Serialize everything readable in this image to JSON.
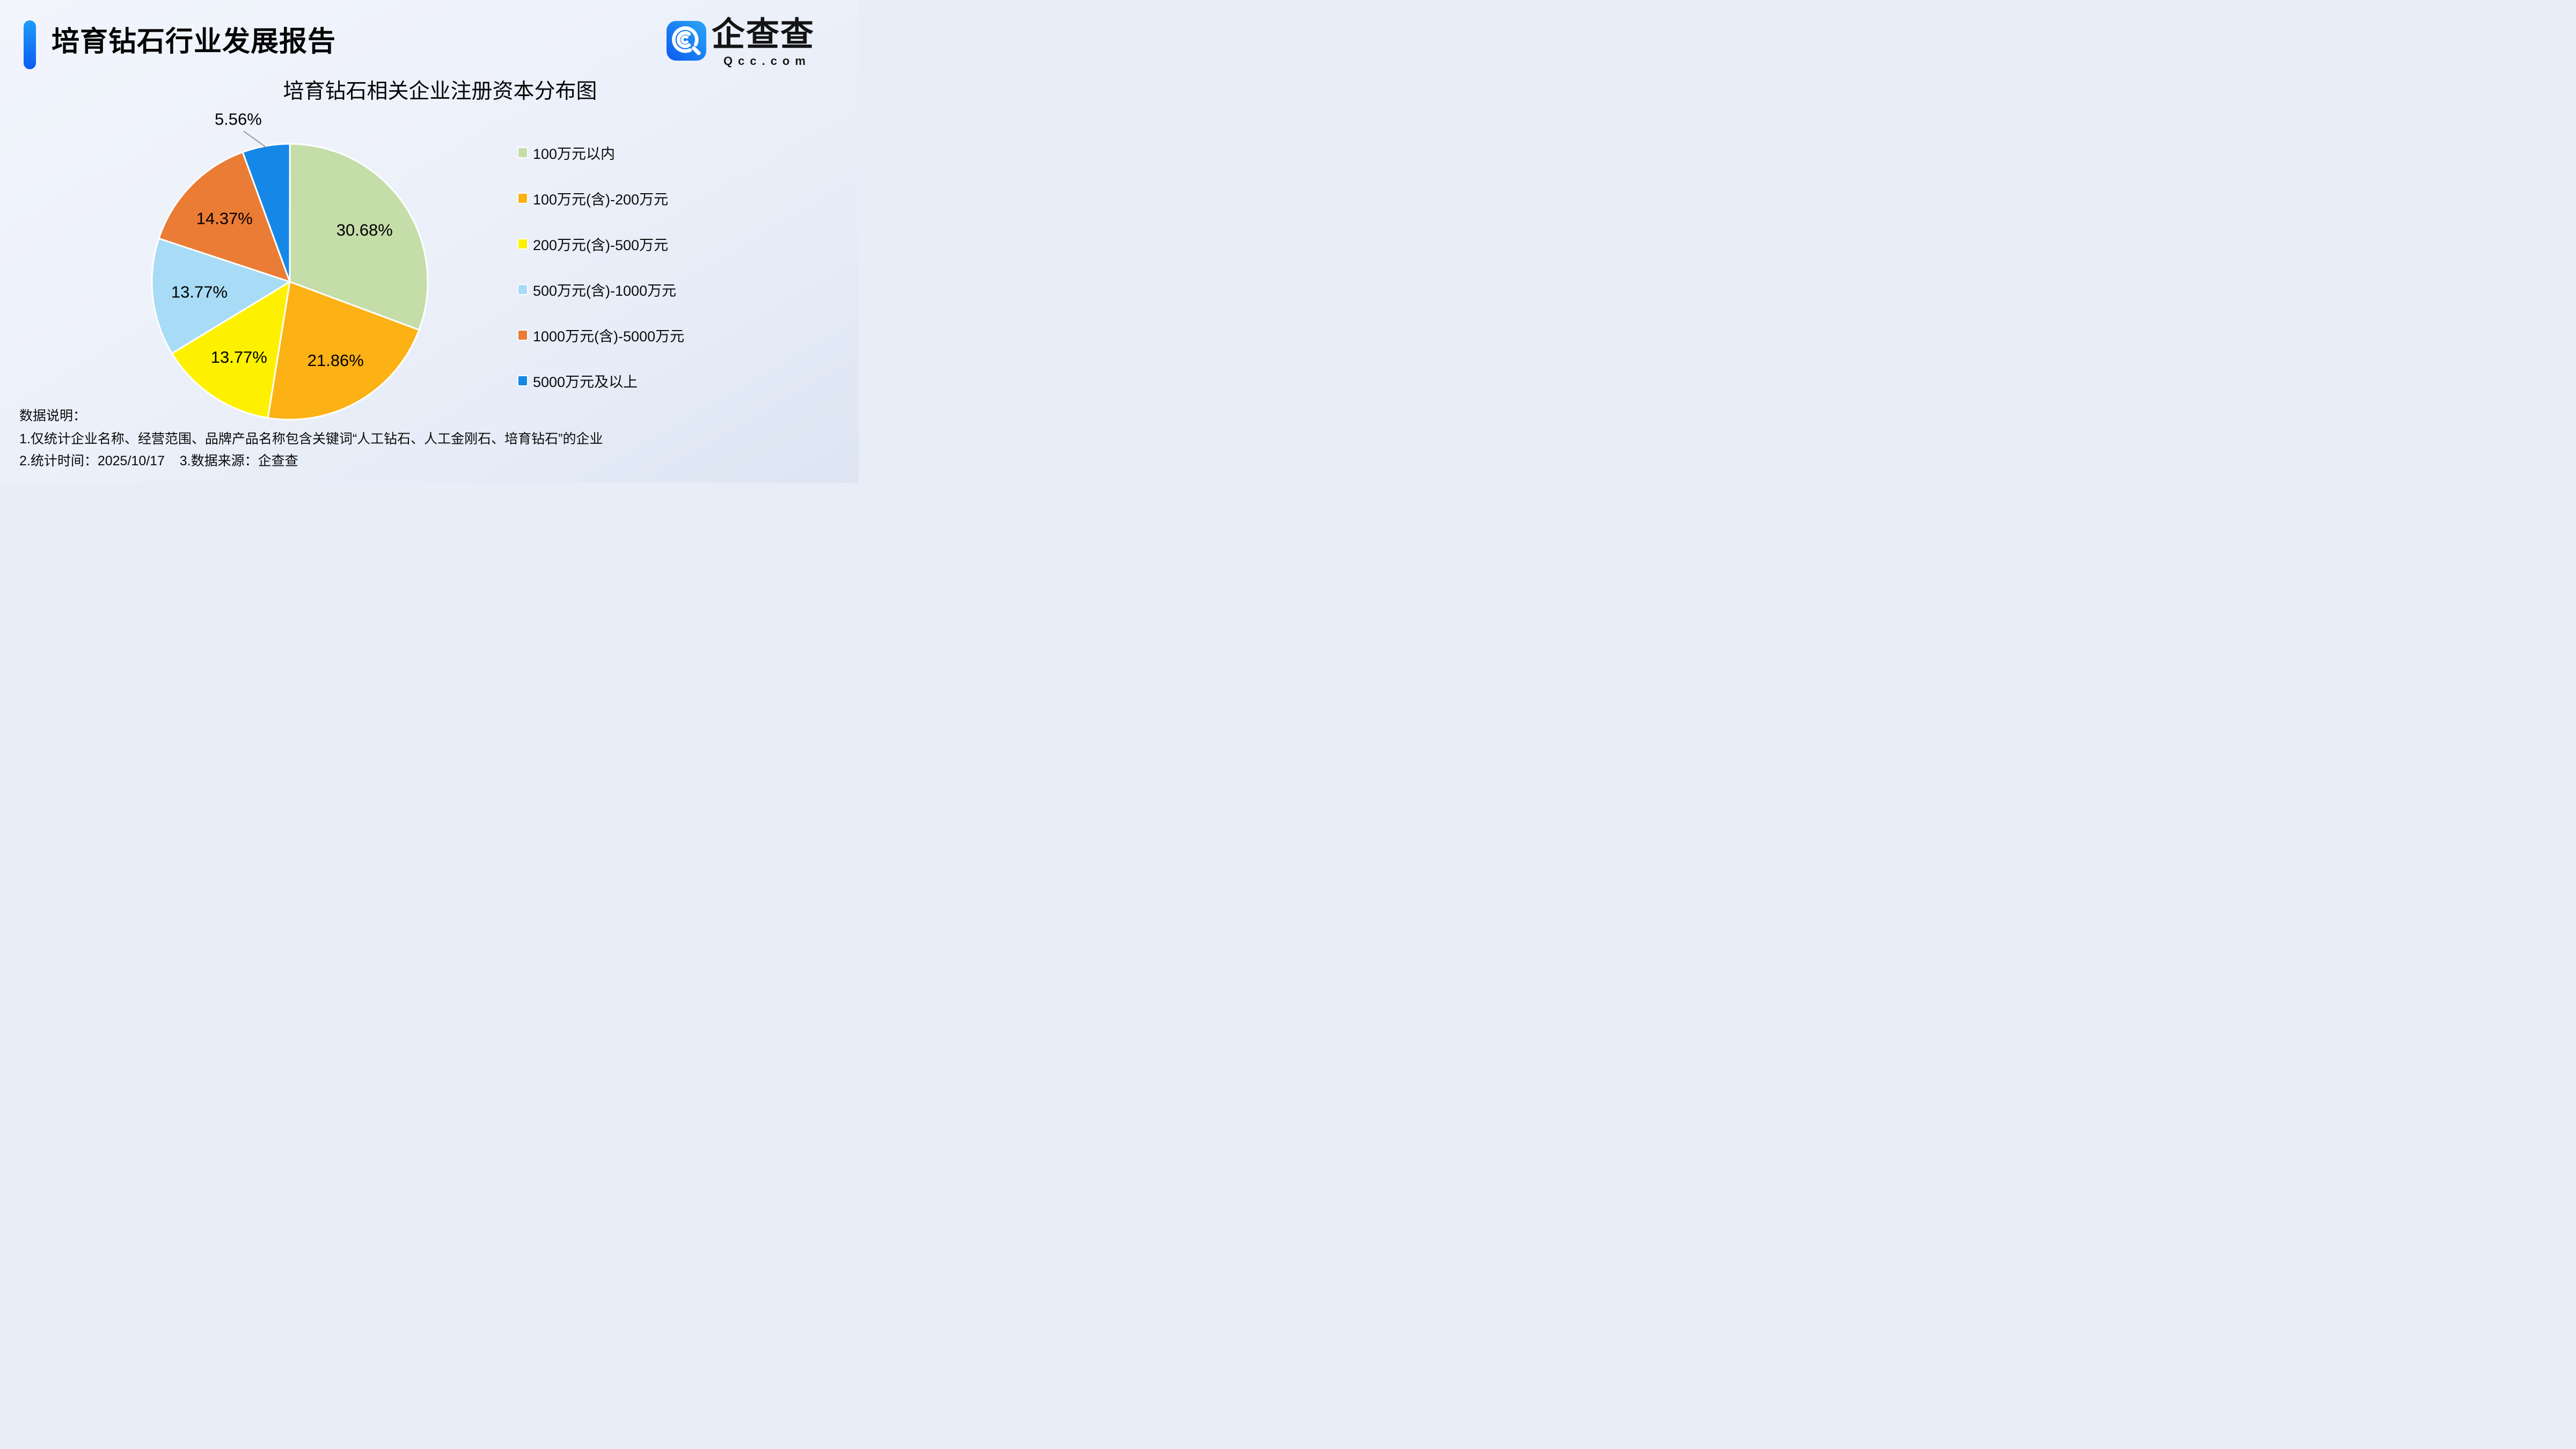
{
  "page": {
    "report_title": "培育钻石行业发展报告"
  },
  "logo": {
    "brand": "企查查",
    "domain": "Qcc.com"
  },
  "chart_data": {
    "type": "pie",
    "title": "培育钻石相关企业注册资本分布图",
    "legend_position": "right",
    "start_angle_deg": 0,
    "clockwise": true,
    "unit": "%",
    "slices": [
      {
        "label": "100万元以内",
        "value": 30.68,
        "display": "30.68%",
        "color": "#c5dda9",
        "label_outside": false
      },
      {
        "label": "100万元(含)-200万元",
        "value": 21.86,
        "display": "21.86%",
        "color": "#fcb114",
        "label_outside": false
      },
      {
        "label": "200万元(含)-500万元",
        "value": 13.77,
        "display": "13.77%",
        "color": "#fdf100",
        "label_outside": false
      },
      {
        "label": "500万元(含)-1000万元",
        "value": 13.77,
        "display": "13.77%",
        "color": "#a8dbf5",
        "label_outside": false
      },
      {
        "label": "1000万元(含)-5000万元",
        "value": 14.37,
        "display": "14.37%",
        "color": "#ea7c36",
        "label_outside": false
      },
      {
        "label": "5000万元及以上",
        "value": 5.56,
        "display": "5.56%",
        "color": "#1588e7",
        "label_outside": true
      }
    ]
  },
  "footer": {
    "heading": "数据说明：",
    "notes": [
      "1.仅统计企业名称、经营范围、品牌产品名称包含关键词“人工钻石、人工金刚石、培育钻石”的企业",
      "2.统计时间：2025/10/17    3.数据来源：企查查"
    ]
  },
  "colors": {
    "accent_blue": "#0d63e9",
    "leader_line": "#9a9a9a",
    "slice_stroke": "#ffffff"
  }
}
